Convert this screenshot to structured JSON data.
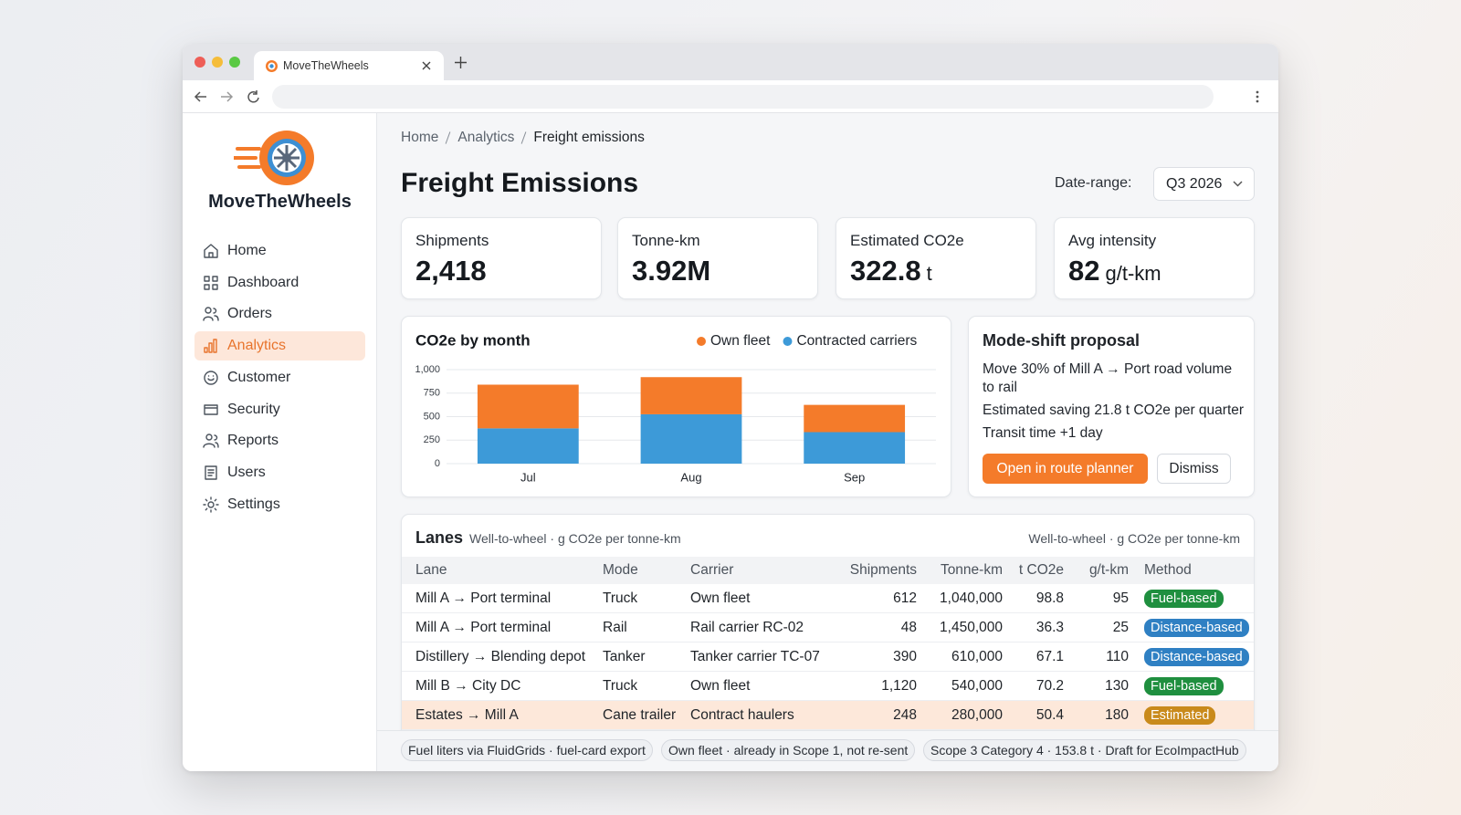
{
  "browser": {
    "tab_title": "MoveTheWheels"
  },
  "sidebar": {
    "brand": "MoveTheWheels",
    "nav": [
      {
        "label": "Home"
      },
      {
        "label": "Dashboard"
      },
      {
        "label": "Orders"
      },
      {
        "label": "Analytics",
        "active": true
      },
      {
        "label": "Customer"
      },
      {
        "label": "Security"
      },
      {
        "label": "Reports"
      },
      {
        "label": "Users"
      },
      {
        "label": "Settings"
      }
    ]
  },
  "breadcrumb": [
    "Home",
    "Analytics",
    "Freight emissions"
  ],
  "header": {
    "title": "Freight Emissions",
    "date_range_label": "Date-range:",
    "date_range_value": "Q3 2026"
  },
  "kpis": [
    {
      "label": "Shipments",
      "value": "2,418"
    },
    {
      "label": "Tonne-km",
      "value": "3.92M"
    },
    {
      "label": "Estimated CO2e",
      "value": "322.8",
      "unit": "t"
    },
    {
      "label": "Avg intensity",
      "value": "82",
      "unit": "g/t-km"
    }
  ],
  "chart_data": {
    "type": "bar",
    "stacked": true,
    "title": "CO2e by month",
    "categories": [
      "Jul",
      "Aug",
      "Sep"
    ],
    "series": [
      {
        "name": "Own fleet",
        "color": "#f47b2a",
        "values": [
          465,
          395,
          290
        ]
      },
      {
        "name": "Contracted carriers",
        "color": "#3d9ad8",
        "values": [
          375,
          525,
          335
        ]
      }
    ],
    "ylim": [
      0,
      1000
    ],
    "yticks": [
      0,
      250,
      500,
      750,
      {
        "value": 1000,
        "label": "1,000"
      }
    ],
    "grid": true,
    "legend": "top-right"
  },
  "proposal": {
    "title": "Mode-shift proposal",
    "lines": [
      "Move 30% of Mill A → Port road volume to rail",
      "Estimated saving 21.8 t CO2e per quarter",
      "Transit time +1 day"
    ],
    "primary_action": "Open in route planner",
    "secondary_action": "Dismiss"
  },
  "lanes": {
    "title": "Lanes",
    "subtitle": "Well-to-wheel · g CO2e per tonne-km",
    "note": "Well-to-wheel · g CO2e per tonne-km",
    "columns": [
      "Lane",
      "Mode",
      "Carrier",
      "Shipments",
      "Tonne-km",
      "t CO2e",
      "g/t-km",
      "Method"
    ],
    "rows": [
      {
        "cells": [
          "Mill A → Port terminal",
          "Truck",
          "Own fleet",
          "612",
          "1,040,000",
          "98.8",
          "95",
          "Fuel-based"
        ],
        "method_color": "#1f8f3f"
      },
      {
        "cells": [
          "Mill A → Port terminal",
          "Rail",
          "Rail carrier RC-02",
          "48",
          "1,450,000",
          "36.3",
          "25",
          "Distance-based"
        ],
        "method_color": "#2f80c3"
      },
      {
        "cells": [
          "Distillery → Blending depot",
          "Tanker",
          "Tanker carrier TC-07",
          "390",
          "610,000",
          "67.1",
          "110",
          "Distance-based"
        ],
        "method_color": "#2f80c3"
      },
      {
        "cells": [
          "Mill B → City DC",
          "Truck",
          "Own fleet",
          "1,120",
          "540,000",
          "70.2",
          "130",
          "Fuel-based"
        ],
        "method_color": "#1f8f3f"
      },
      {
        "cells": [
          "Estates → Mill A",
          "Cane trailer",
          "Contract haulers",
          "248",
          "280,000",
          "50.4",
          "180",
          "Estimated"
        ],
        "method_color": "#c98a1b",
        "highlight": true
      }
    ]
  },
  "footer": {
    "chips": [
      "Fuel liters via FluidGrids · fuel-card export",
      "Own fleet · already in Scope 1, not re-sent",
      "Scope 3 Category 4 · 153.8 t · Draft for EcoImpactHub"
    ]
  }
}
